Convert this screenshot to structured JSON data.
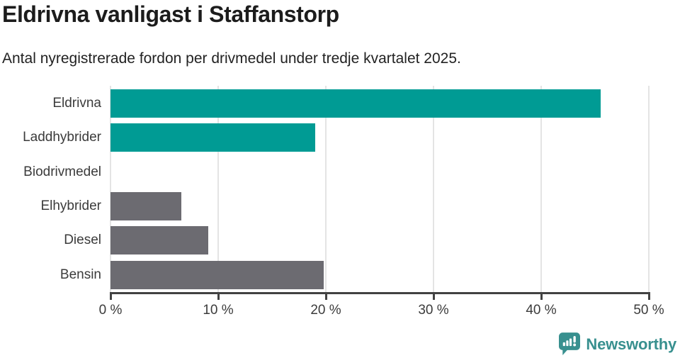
{
  "title": "Eldrivna vanligast i Staffanstorp",
  "subtitle": "Antal nyregistrerade fordon per drivmedel under tredje kvartalet 2025.",
  "chart_data": {
    "type": "bar",
    "orientation": "horizontal",
    "title": "Eldrivna vanligast i Staffanstorp",
    "subtitle": "Antal nyregistrerade fordon per drivmedel under tredje kvartalet 2025.",
    "categories": [
      "Eldrivna",
      "Laddhybrider",
      "Biodrivmedel",
      "Elhybrider",
      "Diesel",
      "Bensin"
    ],
    "values": [
      45.5,
      19,
      0,
      6.6,
      9.1,
      19.8
    ],
    "unit": "%",
    "xlabel": "",
    "ylabel": "",
    "xlim": [
      0,
      50
    ],
    "x_ticks": [
      0,
      10,
      20,
      30,
      40,
      50
    ],
    "x_tick_labels": [
      "0 %",
      "10 %",
      "20 %",
      "30 %",
      "40 %",
      "50 %"
    ],
    "grid": true,
    "legend": false,
    "bar_colors": [
      "#009b94",
      "#009b94",
      "#6c6b71",
      "#6c6b71",
      "#6c6b71",
      "#6c6b71"
    ],
    "highlight_color": "#009b94",
    "default_color": "#6c6b71",
    "gridline_color": "#e4e4e4",
    "axis_color": "#424242"
  },
  "branding": {
    "logo_text": "Newsworthy",
    "logo_color": "#38908f",
    "logo_icon": "newsworthy-speech-bubble-chart-icon"
  }
}
